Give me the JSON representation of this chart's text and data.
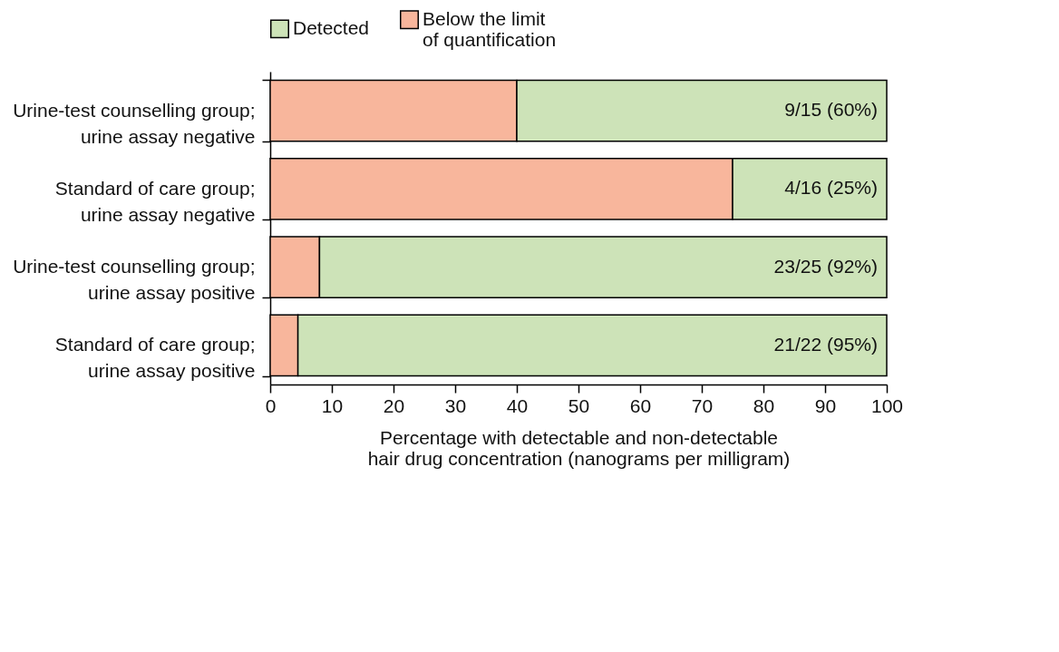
{
  "chart_data": {
    "type": "bar",
    "orientation": "horizontal",
    "stacked": true,
    "categories": [
      "Urine-test counselling group; urine assay negative",
      "Standard of care group; urine assay negative",
      "Urine-test counselling group; urine assay positive",
      "Standard of care group; urine assay positive"
    ],
    "series": [
      {
        "name": "Below the limit of quantification",
        "color": "#f8b69c",
        "values": [
          40,
          75,
          8,
          4.5
        ]
      },
      {
        "name": "Detected",
        "color": "#cde3b8",
        "values": [
          60,
          25,
          92,
          95.5
        ],
        "value_labels": [
          "9/15 (60%)",
          "4/16 (25%)",
          "23/25 (92%)",
          "21/22 (95%)"
        ]
      }
    ],
    "xlabel": "Percentage with detectable and non-detectable hair drug concentration (nanograms per milligram)",
    "xlim": [
      0,
      100
    ],
    "xticks": [
      0,
      10,
      20,
      30,
      40,
      50,
      60,
      70,
      80,
      90,
      100
    ],
    "grid": false,
    "legend": "top"
  }
}
